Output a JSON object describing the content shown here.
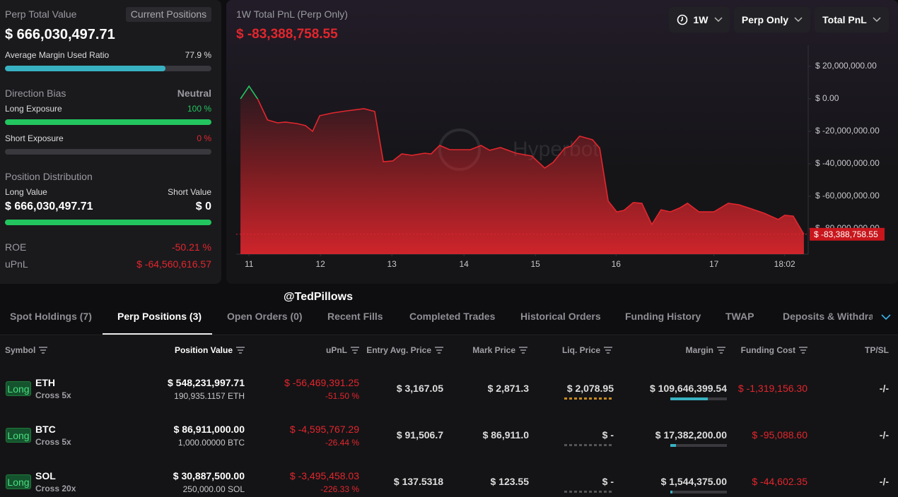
{
  "summary": {
    "title": "Perp Total Value",
    "button": "Current Positions",
    "total_value": "$ 666,030,497.71",
    "margin_ratio": {
      "label": "Average Margin Used Ratio",
      "value": 77.9,
      "value_label": "77.9 %"
    },
    "direction_bias": {
      "label": "Direction Bias",
      "value": "Neutral"
    },
    "long_exposure": {
      "label": "Long Exposure",
      "value": 100,
      "value_label": "100 %"
    },
    "short_exposure": {
      "label": "Short Exposure",
      "value": 0,
      "value_label": "0 %"
    },
    "distribution": {
      "title": "Position Distribution",
      "long_label": "Long Value",
      "short_label": "Short Value",
      "long_value": "$ 666,030,497.71",
      "short_value": "$ 0"
    },
    "roe": {
      "label": "ROE",
      "value": "-50.21 %"
    },
    "upnl": {
      "label": "uPnL",
      "value": "$ -64,560,616.57"
    }
  },
  "chart_data": {
    "type": "line",
    "title": "1W Total PnL (Perp Only)",
    "current_value": -83388758.55,
    "current_value_label": "$ -83,388,758.55",
    "controls": [
      "1W",
      "Perp Only",
      "Total PnL"
    ],
    "watermark": "Hyperbot",
    "colors": {
      "positive": "#22c55e",
      "negative": "#e3262d"
    },
    "grid": false,
    "x": [
      10.88,
      11.0,
      11.12,
      11.26,
      11.4,
      11.51,
      11.67,
      11.79,
      11.89,
      11.99,
      12.17,
      12.37,
      12.61,
      12.76,
      12.88,
      13.01,
      13.14,
      13.28,
      13.46,
      13.55,
      13.67,
      13.81,
      14.1,
      14.25,
      14.37,
      14.52,
      14.74,
      14.96,
      15.14,
      15.26,
      15.42,
      15.51,
      15.63,
      15.81,
      15.91,
      16.03,
      16.15,
      16.25,
      16.38,
      16.5,
      16.64,
      16.77,
      16.9,
      17.04,
      17.14,
      17.3,
      17.51,
      17.71,
      17.86,
      18.01,
      18.21,
      18.41,
      18.5,
      18.62,
      18.77
    ],
    "series": [
      {
        "name": "Total PnL",
        "values": [
          0,
          7800000,
          0,
          -13000000,
          -14800000,
          -14300000,
          -15200000,
          -16500000,
          -20000000,
          -10400000,
          -8700000,
          -7400000,
          -6100000,
          -7800000,
          -38700000,
          -38300000,
          -33900000,
          -34800000,
          -33500000,
          -33900000,
          -28700000,
          -31300000,
          -31300000,
          -28700000,
          -31700000,
          -30000000,
          -33500000,
          -35200000,
          -42600000,
          -39100000,
          -30400000,
          -29100000,
          -23000000,
          -25200000,
          -30400000,
          -63000000,
          -69600000,
          -68700000,
          -63900000,
          -64300000,
          -77400000,
          -68300000,
          -69600000,
          -67000000,
          -64300000,
          -69600000,
          -69600000,
          -64300000,
          -65200000,
          -67400000,
          -70400000,
          -74300000,
          -71700000,
          -72200000,
          -83388758.55
        ]
      }
    ],
    "xlim": [
      10.82,
      18.83
    ],
    "xticks": [
      {
        "value": 11,
        "label": "11"
      },
      {
        "value": 12,
        "label": "12"
      },
      {
        "value": 13,
        "label": "13"
      },
      {
        "value": 14.01,
        "label": "14"
      },
      {
        "value": 15.01,
        "label": "15"
      },
      {
        "value": 16.14,
        "label": "16"
      },
      {
        "value": 17.51,
        "label": "17"
      },
      {
        "value": 18.5,
        "label": "18:02"
      }
    ],
    "ylim": [
      -95650000,
      33040000
    ],
    "yticks": [
      {
        "value": 20000000,
        "label": "$ 20,000,000.00"
      },
      {
        "value": 0,
        "label": "$ 0.00"
      },
      {
        "value": -20000000,
        "label": "$ -20,000,000.00"
      },
      {
        "value": -40000000,
        "label": "$ -40,000,000.00"
      },
      {
        "value": -60000000,
        "label": "$ -60,000,000.00"
      },
      {
        "value": -80000000,
        "label": "$ -80,000,000.00"
      }
    ]
  },
  "overlay": "@TedPillows",
  "tabs": {
    "items": [
      "Spot Holdings (7)",
      "Perp Positions (3)",
      "Open Orders (0)",
      "Recent Fills",
      "Completed Trades",
      "Historical Orders",
      "Funding History",
      "TWAP",
      "Deposits & Withdraw"
    ],
    "active": 1
  },
  "table": {
    "headers": [
      "Symbol",
      "Position Value",
      "uPnL",
      "Entry Avg. Price",
      "Mark Price",
      "Liq. Price",
      "Margin",
      "Funding Cost",
      "TP/SL"
    ],
    "rows": [
      {
        "side": "Long",
        "symbol": "ETH",
        "leverage": "Cross 5x",
        "position_value": "$ 548,231,997.71",
        "size": "190,935.1157 ETH",
        "upnl": "$ -56,469,391.25",
        "upnl_pct": "-51.50 %",
        "entry": "$ 3,167.05",
        "mark": "$ 2,871.3",
        "liq": "$ 2,078.95",
        "margin": "$ 109,646,399.54",
        "funding": "$ -1,319,156.30",
        "tpsl": "-/-"
      },
      {
        "side": "Long",
        "symbol": "BTC",
        "leverage": "Cross 5x",
        "position_value": "$ 86,911,000.00",
        "size": "1,000.00000 BTC",
        "upnl": "$ -4,595,767.29",
        "upnl_pct": "-26.44 %",
        "entry": "$ 91,506.7",
        "mark": "$ 86,911.0",
        "liq": "$ -",
        "margin": "$ 17,382,200.00",
        "funding": "$ -95,088.60",
        "tpsl": "-/-"
      },
      {
        "side": "Long",
        "symbol": "SOL",
        "leverage": "Cross 20x",
        "position_value": "$ 30,887,500.00",
        "size": "250,000.00 SOL",
        "upnl": "$ -3,495,458.03",
        "upnl_pct": "-226.33 %",
        "entry": "$ 137.5318",
        "mark": "$ 123.55",
        "liq": "$ -",
        "margin": "$ 1,544,375.00",
        "funding": "$ -44,602.35",
        "tpsl": "-/-"
      }
    ]
  }
}
